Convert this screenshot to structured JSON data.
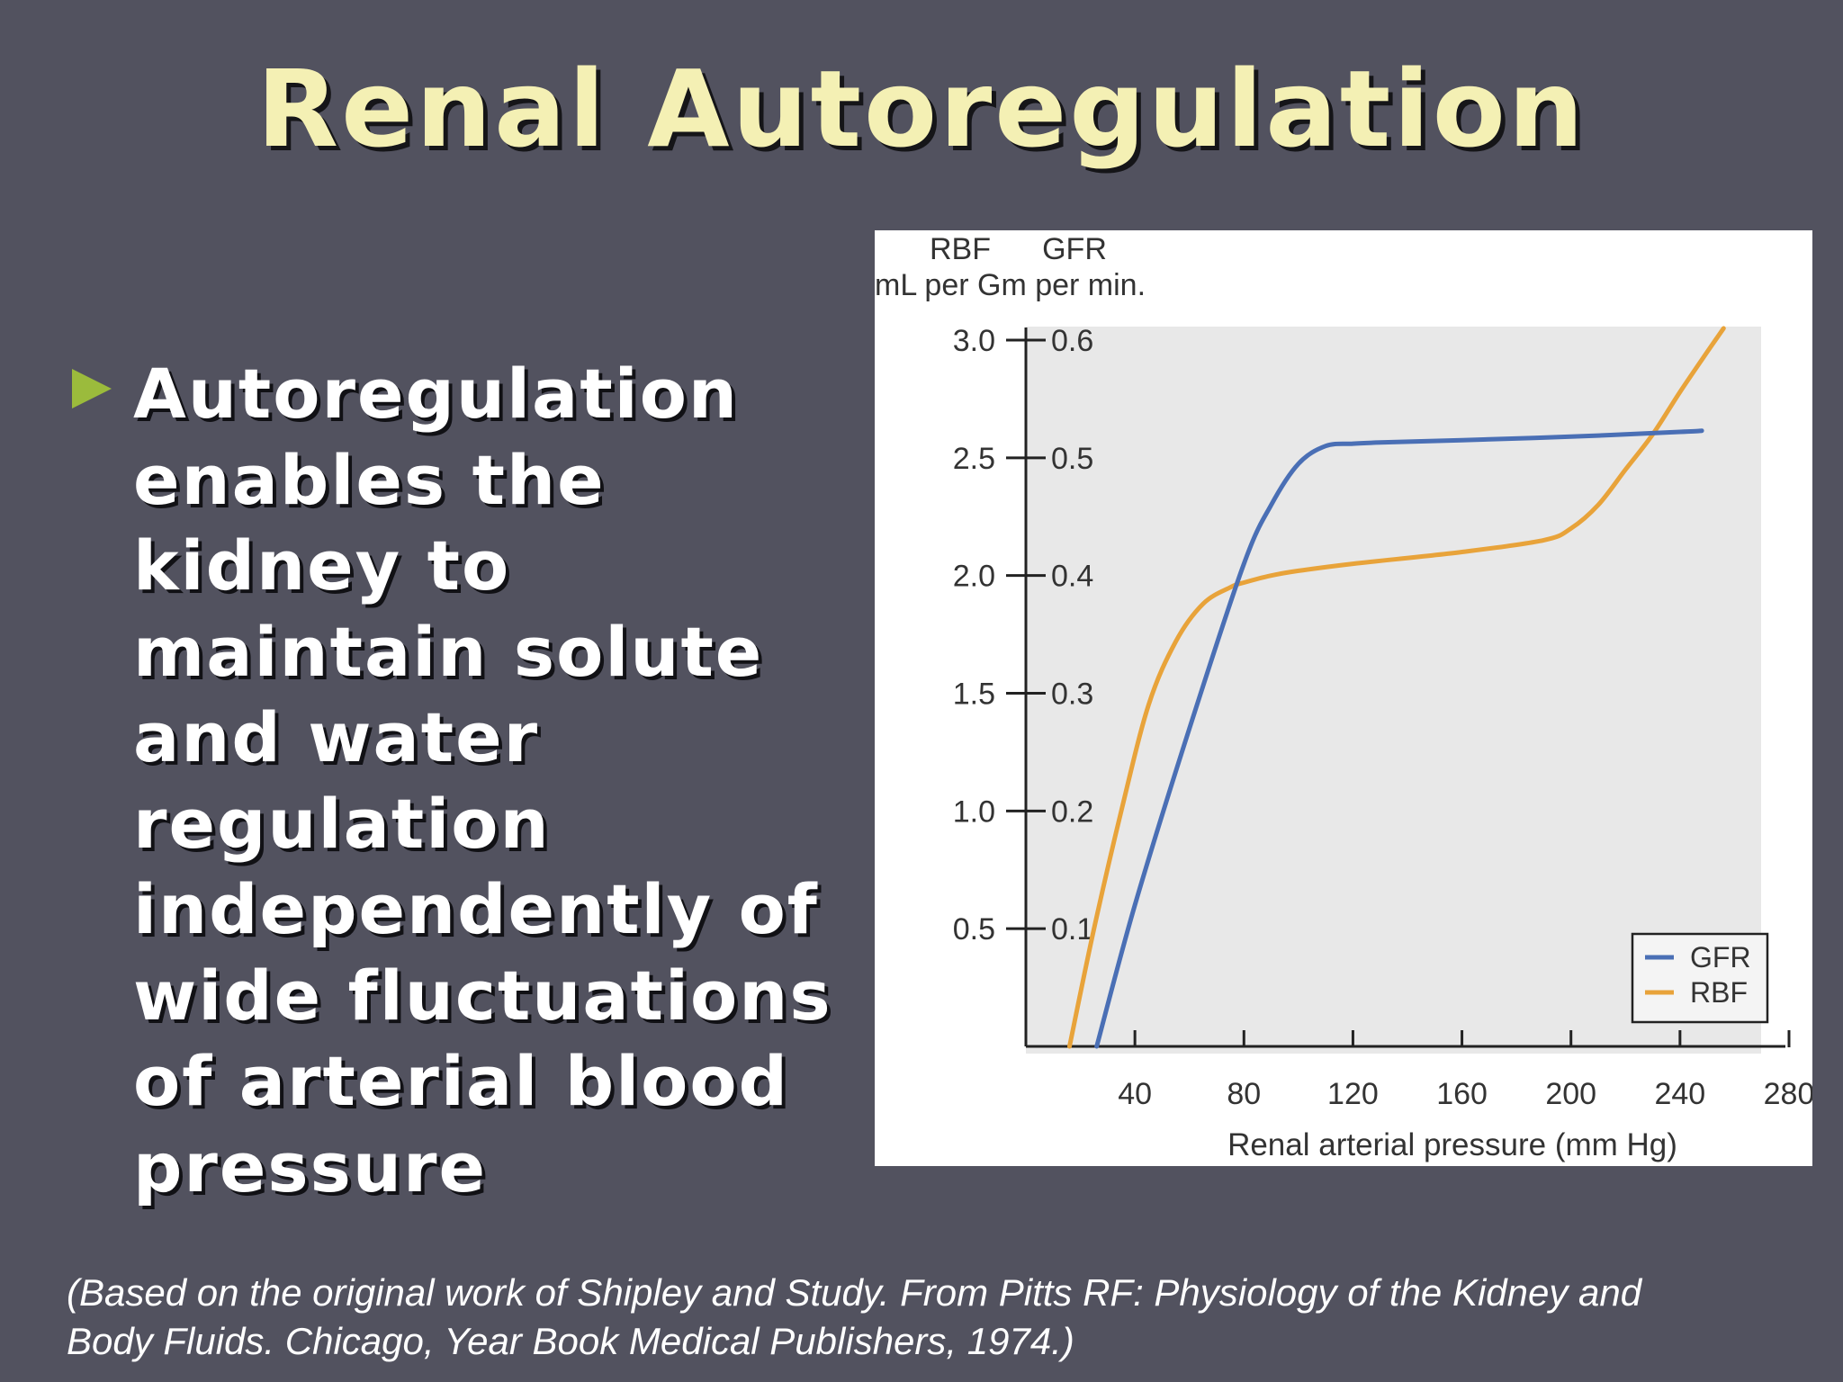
{
  "slide": {
    "title": "Renal Autoregulation",
    "bullet": "Autoregulation enables the kidney to maintain solute and water regulation independently of wide fluctuations of arterial blood pressure",
    "citation_line1": "(Based on the original work of Shipley and Study. From Pitts RF: Physiology of the Kidney and",
    "citation_line2": "Body Fluids. Chicago, Year Book Medical Publishers, 1974.)"
  },
  "colors": {
    "background": "#52525f",
    "title": "#f4f0b4",
    "bullet_marker": "#9bbb3c",
    "plot_area": "#e8e8e8",
    "gfr": "#4a6fb5",
    "rbf": "#e8a33a"
  },
  "chart_data": {
    "type": "line",
    "title": "",
    "xlabel": "Renal arterial pressure (mm Hg)",
    "ylabel_left": "RBF",
    "ylabel_right": "GFR",
    "yunit": "mL per Gm per min.",
    "xlim": [
      0,
      280
    ],
    "x_ticks": [
      "40",
      "80",
      "120",
      "160",
      "200",
      "240",
      "280"
    ],
    "ylim_rbf": [
      0,
      3.0
    ],
    "ylim_gfr": [
      0,
      0.6
    ],
    "y_ticks_rbf": [
      "0.5",
      "1.0",
      "1.5",
      "2.0",
      "2.5",
      "3.0"
    ],
    "y_ticks_gfr": [
      "0.1",
      "0.2",
      "0.3",
      "0.4",
      "0.5",
      "0.6"
    ],
    "legend": [
      "GFR",
      "RBF"
    ],
    "legend_position": "bottom-right",
    "series": [
      {
        "name": "GFR",
        "scale": "GFR",
        "x": [
          26,
          40,
          60,
          80,
          90,
          100,
          110,
          120,
          130,
          160,
          200,
          240,
          248
        ],
        "y": [
          0.0,
          0.12,
          0.27,
          0.41,
          0.46,
          0.495,
          0.51,
          0.512,
          0.513,
          0.515,
          0.518,
          0.522,
          0.523
        ]
      },
      {
        "name": "RBF",
        "scale": "RBF",
        "x": [
          16,
          25,
          35,
          45,
          55,
          65,
          75,
          80,
          90,
          100,
          120,
          160,
          190,
          200,
          210,
          220,
          230,
          240,
          250,
          256
        ],
        "y": [
          0.0,
          0.5,
          1.0,
          1.45,
          1.72,
          1.88,
          1.95,
          1.97,
          2.0,
          2.02,
          2.05,
          2.1,
          2.15,
          2.2,
          2.3,
          2.45,
          2.6,
          2.78,
          2.95,
          3.05
        ]
      }
    ]
  }
}
